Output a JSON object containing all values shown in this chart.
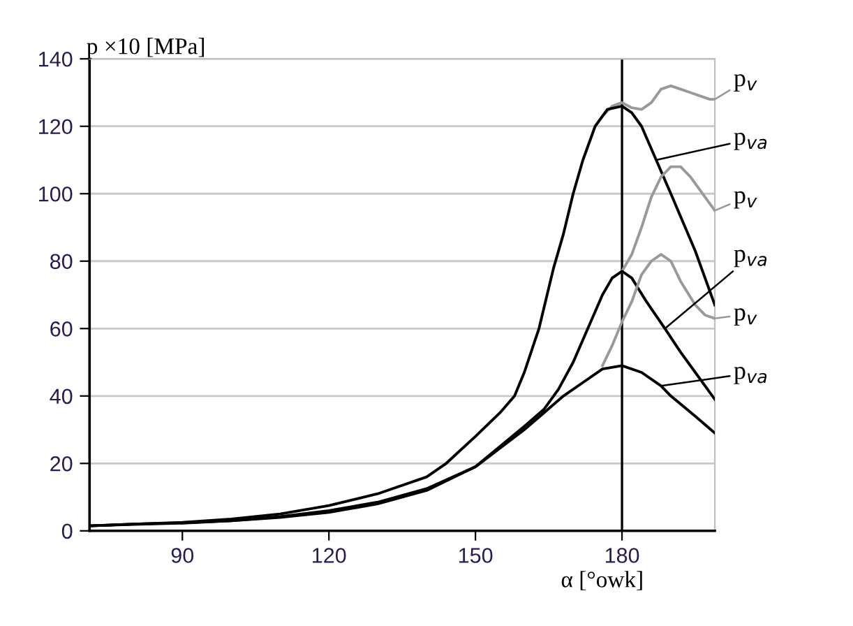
{
  "chart_data": {
    "type": "line",
    "xlabel": "α [°owk]",
    "ylabel": "p ×10 [MPa]",
    "xlim": [
      71,
      199
    ],
    "xticks": [
      90,
      120,
      150,
      180
    ],
    "ylim": [
      0,
      140
    ],
    "yticks": [
      0,
      20,
      40,
      60,
      80,
      100,
      120,
      140
    ],
    "grid": "y",
    "legend": "right",
    "marker": "none",
    "line_style": "solid",
    "ref_lines": [
      {
        "axis": "x",
        "value": 180,
        "color": "#000000"
      }
    ],
    "series": [
      {
        "name": "p$_{v}$",
        "color": "#999999",
        "x": [
          176,
          178,
          180,
          182,
          184,
          186,
          188,
          190,
          192,
          194,
          196,
          198,
          199
        ],
        "values": [
          123,
          126,
          127,
          125.5,
          125,
          127,
          131,
          132,
          131,
          130,
          129,
          128,
          128
        ]
      },
      {
        "name": "p$_{va}$",
        "color": "#000000",
        "x": [
          71,
          80,
          90,
          100,
          110,
          120,
          130,
          140,
          144,
          150,
          155,
          158,
          160,
          163,
          166,
          168,
          170,
          172,
          174.5,
          177,
          180,
          182,
          184,
          187,
          190,
          195,
          199
        ],
        "values": [
          1.5,
          2,
          2.5,
          3.5,
          5,
          7.5,
          11,
          16,
          20,
          28,
          35,
          40,
          47,
          60,
          78,
          88,
          100,
          110,
          120,
          125,
          126,
          124,
          120,
          110,
          100,
          83,
          67
        ]
      },
      {
        "name": "p$_{v}$",
        "color": "#999999",
        "x": [
          178,
          180,
          182,
          184,
          186,
          188,
          190,
          192,
          194,
          196,
          198,
          199
        ],
        "values": [
          75,
          77,
          82,
          90,
          99,
          105,
          108,
          108,
          105,
          101,
          97,
          95
        ]
      },
      {
        "name": "p$_{va}$",
        "color": "#000000",
        "x": [
          71,
          80,
          90,
          100,
          110,
          120,
          130,
          140,
          150,
          160,
          164,
          167,
          170,
          173,
          176,
          178,
          180,
          182,
          185,
          188.8,
          192,
          195,
          199
        ],
        "values": [
          1.5,
          2,
          2.4,
          3,
          4.2,
          6,
          8.5,
          12.5,
          19,
          31,
          36,
          42,
          50,
          60,
          70,
          75,
          77,
          75,
          68,
          60,
          53,
          47,
          39
        ]
      },
      {
        "name": "p$_{v}$",
        "color": "#999999",
        "x": [
          176,
          178,
          180,
          182,
          184,
          186,
          188,
          190,
          192,
          195,
          197,
          199
        ],
        "values": [
          49,
          55,
          62,
          68,
          76,
          80,
          82,
          80,
          74,
          67,
          64,
          63
        ]
      },
      {
        "name": "p$_{va}$",
        "color": "#000000",
        "x": [
          71,
          80,
          90,
          100,
          110,
          120,
          130,
          140,
          150,
          160,
          164,
          168,
          172,
          176,
          180,
          184,
          188,
          190,
          195,
          199
        ],
        "values": [
          1.5,
          1.9,
          2.3,
          3,
          4,
          5.5,
          8,
          12,
          19,
          30,
          35,
          40,
          44,
          48,
          49,
          47,
          43,
          40,
          34,
          29
        ]
      }
    ]
  }
}
